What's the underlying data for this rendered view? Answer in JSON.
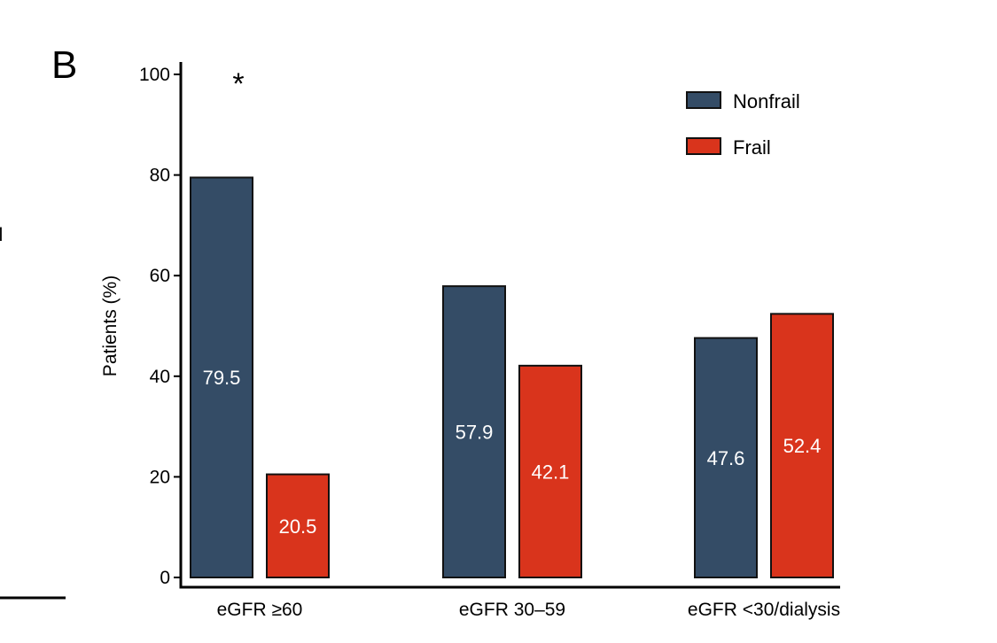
{
  "panel_label": "B",
  "stray_fragment": "il",
  "significance_marker": "*",
  "colors": {
    "nonfrail": "#344c66",
    "frail": "#d9341c",
    "axis": "#000000"
  },
  "chart_data": {
    "type": "bar",
    "title": "",
    "xlabel": "",
    "ylabel": "Patients (%)",
    "ylim": [
      0,
      100
    ],
    "yticks": [
      0,
      20,
      40,
      60,
      80,
      100
    ],
    "grid": false,
    "legend_position": "top-right",
    "categories": [
      "eGFR ≥60",
      "eGFR 30–59",
      "eGFR <30/dialysis"
    ],
    "series": [
      {
        "name": "Nonfrail",
        "values": [
          79.5,
          57.9,
          47.6
        ],
        "labels": [
          "79.5",
          "57.9",
          "47.6"
        ]
      },
      {
        "name": "Frail",
        "values": [
          20.5,
          42.1,
          52.4
        ],
        "labels": [
          "20.5",
          "42.1",
          "52.4"
        ]
      }
    ],
    "annotations": [
      {
        "category_index": 0,
        "text": "*"
      }
    ]
  }
}
